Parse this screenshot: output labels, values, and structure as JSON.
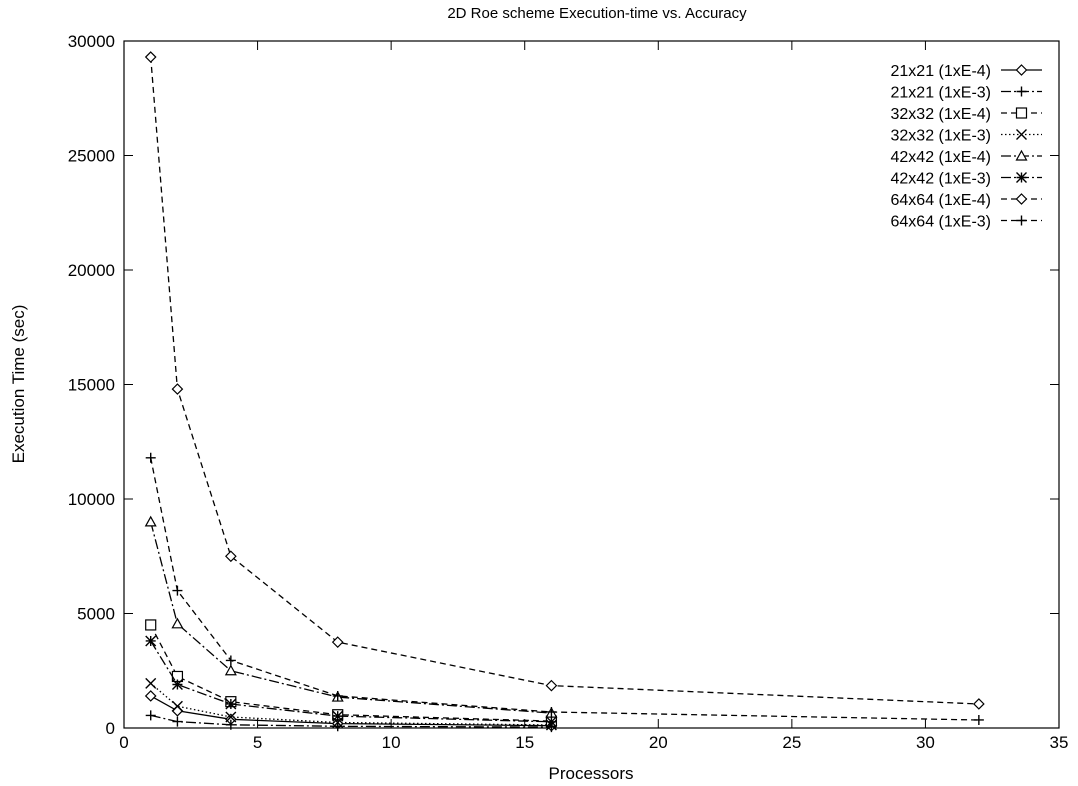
{
  "chart_data": {
    "type": "line",
    "title": "2D Roe scheme Execution-time vs. Accuracy",
    "xlabel": "Processors",
    "ylabel": "Execution Time (sec)",
    "xlim": [
      0,
      35
    ],
    "ylim": [
      0,
      30000
    ],
    "xticks": [
      0,
      5,
      10,
      15,
      20,
      25,
      30,
      35
    ],
    "yticks": [
      0,
      5000,
      10000,
      15000,
      20000,
      25000,
      30000
    ],
    "grid": false,
    "legend_position": "top-right",
    "series": [
      {
        "name": "21x21 (1xE-4)",
        "marker": "diamond",
        "dash": "solid",
        "x": [
          1,
          2,
          4,
          8,
          16
        ],
        "y": [
          1400,
          750,
          380,
          190,
          100
        ]
      },
      {
        "name": "21x21 (1xE-3)",
        "marker": "plus",
        "dash": "dashdot",
        "x": [
          1,
          2,
          4,
          8,
          16
        ],
        "y": [
          550,
          280,
          140,
          75,
          40
        ]
      },
      {
        "name": "32x32 (1xE-4)",
        "marker": "square",
        "dash": "dashed",
        "x": [
          1,
          2,
          4,
          8,
          16
        ],
        "y": [
          4500,
          2250,
          1150,
          580,
          300
        ]
      },
      {
        "name": "32x32 (1xE-3)",
        "marker": "cross",
        "dash": "dotted",
        "x": [
          1,
          2,
          4,
          8,
          16
        ],
        "y": [
          1950,
          950,
          480,
          240,
          130
        ]
      },
      {
        "name": "42x42 (1xE-4)",
        "marker": "triangle",
        "dash": "dashdot",
        "x": [
          1,
          2,
          4,
          8,
          16
        ],
        "y": [
          9000,
          4550,
          2500,
          1350,
          650
        ]
      },
      {
        "name": "42x42 (1xE-3)",
        "marker": "star",
        "dash": "dashdot",
        "x": [
          1,
          2,
          4,
          8,
          16
        ],
        "y": [
          3800,
          1900,
          1050,
          520,
          270
        ]
      },
      {
        "name": "64x64 (1xE-4)",
        "marker": "diamond",
        "dash": "dashed",
        "x": [
          1,
          2,
          4,
          8,
          16,
          32
        ],
        "y": [
          29300,
          14800,
          7500,
          3750,
          1850,
          1050
        ]
      },
      {
        "name": "64x64 (1xE-3)",
        "marker": "plus",
        "dash": "dashed",
        "x": [
          1,
          2,
          4,
          8,
          16,
          32
        ],
        "y": [
          11800,
          6000,
          2950,
          1400,
          700,
          350
        ]
      }
    ]
  }
}
